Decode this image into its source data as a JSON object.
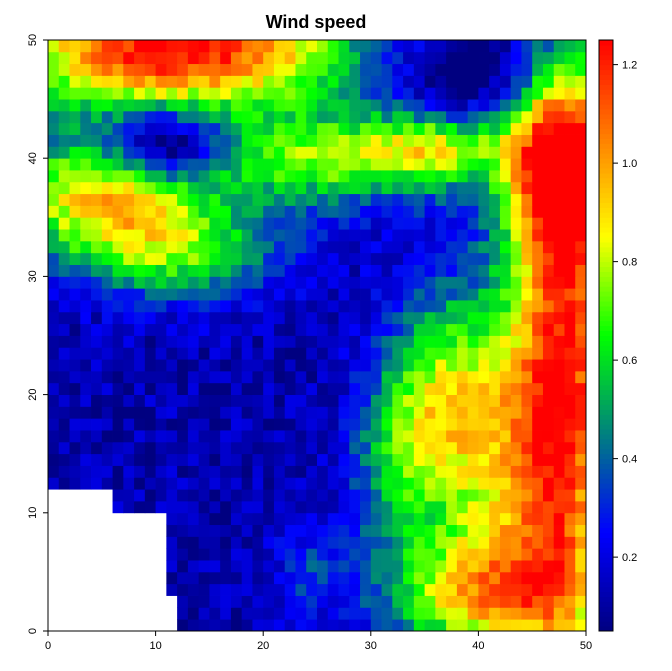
{
  "chart_data": {
    "type": "heatmap",
    "title": "Wind speed",
    "xlabel": "",
    "ylabel": "",
    "xlim": [
      0,
      50
    ],
    "ylim": [
      0,
      50
    ],
    "x_ticks": [
      0,
      10,
      20,
      30,
      40,
      50
    ],
    "y_ticks": [
      0,
      10,
      20,
      30,
      40,
      50
    ],
    "grid_size": [
      50,
      50
    ],
    "colorbar": {
      "range": [
        0.05,
        1.25
      ],
      "ticks": [
        0.2,
        0.4,
        0.6,
        0.8,
        1.0,
        1.2
      ],
      "tick_labels": [
        "0.2",
        "0.4",
        "0.6",
        "0.8",
        "1.0",
        "1.2"
      ],
      "palette": [
        "#000080",
        "#0000ff",
        "#008080",
        "#00ff00",
        "#ffff00",
        "#ff8000",
        "#ff0000"
      ]
    },
    "missing_region": "lower-left corner (no data)",
    "regions": [
      {
        "area": "top-left",
        "level": "high (~1.2)"
      },
      {
        "area": "left middle",
        "level": "medium (~0.6-0.9)"
      },
      {
        "area": "bottom-left and center",
        "level": "low (~0.1-0.3)"
      },
      {
        "area": "right side",
        "level": "high (~1.0-1.2)"
      },
      {
        "area": "center-right diagonal band",
        "level": "medium (~0.5-0.9)"
      }
    ]
  }
}
